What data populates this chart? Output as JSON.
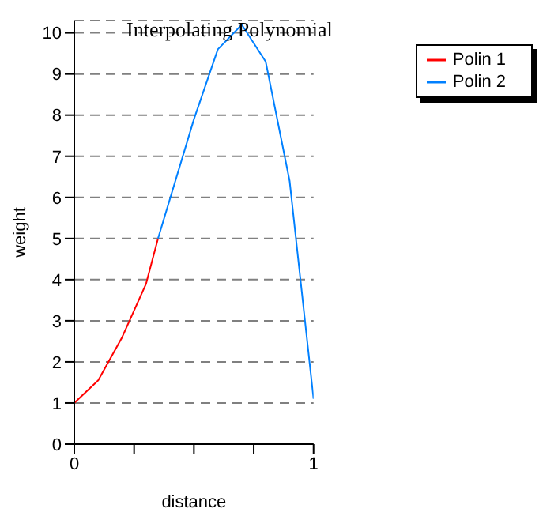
{
  "chart_data": {
    "type": "line",
    "title": "Interpolating Polynomial",
    "xlabel": "distance",
    "ylabel": "weight",
    "series": [
      {
        "name": "Polin 1",
        "color": "#ff0000",
        "x": [
          0,
          0.1,
          0.2,
          0.3,
          0.35
        ],
        "values": [
          1,
          1.55,
          2.6,
          3.9,
          5
        ]
      },
      {
        "name": "Polin 2",
        "color": "#0080ff",
        "x": [
          0.35,
          0.5,
          0.6,
          0.7,
          0.8,
          0.9,
          1
        ],
        "values": [
          5,
          7.9,
          9.6,
          10.2,
          9.3,
          6.4,
          1.1
        ]
      }
    ],
    "xlim": [
      0,
      1
    ],
    "xticks": [
      0,
      {
        "value": 0.25,
        "label": null
      },
      {
        "value": 0.5,
        "label": null
      },
      {
        "value": 0.75,
        "label": null
      },
      1
    ],
    "ylim": [
      0,
      10.3
    ],
    "yticks": [
      0,
      1,
      2,
      3,
      4,
      5,
      6,
      7,
      8,
      9,
      10
    ],
    "grid": "y",
    "legend": "top right",
    "marker": "none",
    "line_style": "solid"
  }
}
